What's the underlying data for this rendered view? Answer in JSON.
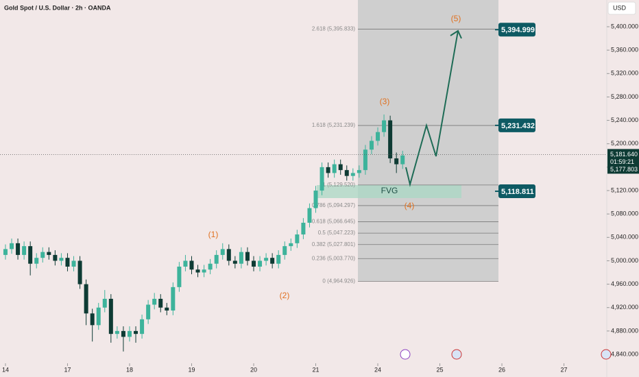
{
  "chart_data": {
    "type": "candlestick",
    "title": "Gold Spot / U.S. Dollar · 2h · OANDA",
    "currency": "USD",
    "xlim": [
      -0.088,
      9.69
    ],
    "ylim": [
      4824.8,
      5445.7
    ],
    "xticks": [
      {
        "value": 0,
        "label": "14"
      },
      {
        "value": 1,
        "label": "17"
      },
      {
        "value": 2,
        "label": "18"
      },
      {
        "value": 3,
        "label": "19"
      },
      {
        "value": 4,
        "label": "20"
      },
      {
        "value": 5,
        "label": "21"
      },
      {
        "value": 6,
        "label": "24"
      },
      {
        "value": 7,
        "label": "25"
      },
      {
        "value": 8,
        "label": "26"
      },
      {
        "value": 9,
        "label": "27"
      }
    ],
    "yticks": [
      {
        "value": 5400,
        "label": "5,400.000"
      },
      {
        "value": 5360,
        "label": "5,360.000"
      },
      {
        "value": 5320,
        "label": "5,320.000"
      },
      {
        "value": 5280,
        "label": "5,280.000"
      },
      {
        "value": 5240,
        "label": "5,240.000"
      },
      {
        "value": 5200,
        "label": "5,200.000"
      },
      {
        "value": 5160,
        "label": "5,160.000"
      },
      {
        "value": 5120,
        "label": "5,120.000"
      },
      {
        "value": 5080,
        "label": "5,080.000"
      },
      {
        "value": 5040,
        "label": "5,040.000"
      },
      {
        "value": 5000,
        "label": "5,000.000"
      },
      {
        "value": 4960,
        "label": "4,960.000"
      },
      {
        "value": 4920,
        "label": "4,920.000"
      },
      {
        "value": 4880,
        "label": "4,880.000"
      },
      {
        "value": 4840,
        "label": "4,840.000"
      }
    ],
    "up_color": "#3db39b",
    "down_color": "#0e3b34",
    "x": [
      0,
      0.1,
      0.2,
      0.3,
      0.4,
      0.5,
      0.6,
      0.7,
      0.8,
      0.9,
      1,
      1.1,
      1.2,
      1.3,
      1.4,
      1.5,
      1.6,
      1.7,
      1.8,
      1.9,
      2,
      2.1,
      2.2,
      2.3,
      2.4,
      2.5,
      2.6,
      2.7,
      2.8,
      2.9,
      3,
      3.1,
      3.2,
      3.3,
      3.4,
      3.5,
      3.6,
      3.7,
      3.8,
      3.9,
      4,
      4.1,
      4.2,
      4.3,
      4.4,
      4.5,
      4.6,
      4.7,
      4.8,
      4.9,
      5,
      5.1,
      5.2,
      5.3,
      5.4,
      5.5,
      5.6,
      5.7,
      5.8,
      5.9,
      6,
      6.1,
      6.2,
      6.3,
      6.4
    ],
    "open": [
      5010,
      5020,
      5030,
      5010,
      5025,
      4995,
      5005,
      5015,
      5010,
      5000,
      5005,
      4990,
      5000,
      4960,
      4910,
      4890,
      4920,
      4935,
      4875,
      4880,
      4870,
      4880,
      4875,
      4900,
      4925,
      4935,
      4920,
      4915,
      4955,
      4990,
      5000,
      4985,
      4980,
      4985,
      4995,
      5010,
      5020,
      5000,
      4995,
      5015,
      5000,
      4990,
      5000,
      5005,
      4995,
      5010,
      5025,
      5030,
      5045,
      5065,
      5090,
      5120,
      5160,
      5150,
      5165,
      5155,
      5145,
      5150,
      5155,
      5190,
      5205,
      5220,
      5240,
      5175,
      5165
    ],
    "high": [
      5028,
      5038,
      5038,
      5033,
      5033,
      5013,
      5023,
      5023,
      5018,
      5013,
      5013,
      5008,
      5008,
      4968,
      4918,
      4928,
      4950,
      4943,
      4888,
      4888,
      4888,
      4888,
      4908,
      4933,
      4945,
      4943,
      4928,
      4963,
      4998,
      5010,
      5008,
      4993,
      4993,
      5003,
      5018,
      5030,
      5028,
      5008,
      5023,
      5023,
      5008,
      5008,
      5013,
      5013,
      5018,
      5033,
      5038,
      5053,
      5073,
      5098,
      5128,
      5168,
      5168,
      5173,
      5173,
      5163,
      5158,
      5163,
      5198,
      5213,
      5228,
      5250,
      5248,
      5185,
      5188
    ],
    "low": [
      5002,
      5012,
      5002,
      5002,
      4975,
      4987,
      4997,
      5002,
      4992,
      4992,
      4982,
      4982,
      4952,
      4890,
      4862,
      4882,
      4912,
      4860,
      4867,
      4845,
      4862,
      4860,
      4867,
      4892,
      4917,
      4912,
      4907,
      4907,
      4947,
      4982,
      4977,
      4972,
      4972,
      4977,
      4987,
      5002,
      4992,
      4987,
      4987,
      4992,
      4982,
      4982,
      4992,
      4987,
      4987,
      5002,
      5017,
      5022,
      5037,
      5057,
      5082,
      5112,
      5142,
      5142,
      5147,
      5137,
      5137,
      5142,
      5147,
      5182,
      5197,
      5212,
      5167,
      5150,
      5157
    ],
    "close": [
      5020,
      5030,
      5010,
      5025,
      4995,
      5005,
      5015,
      5010,
      5000,
      5005,
      4990,
      5000,
      4960,
      4910,
      4890,
      4920,
      4935,
      4875,
      4880,
      4870,
      4880,
      4875,
      4900,
      4925,
      4935,
      4920,
      4915,
      4955,
      4990,
      5000,
      4985,
      4980,
      4985,
      4995,
      5010,
      5020,
      5000,
      4995,
      5015,
      5000,
      4990,
      5000,
      5005,
      4995,
      5010,
      5025,
      5030,
      5045,
      5065,
      5090,
      5120,
      5160,
      5150,
      5165,
      5155,
      5145,
      5150,
      5155,
      5190,
      5205,
      5220,
      5240,
      5175,
      5165,
      5180
    ],
    "fib_levels": [
      {
        "value": 5395.833,
        "label": "2.618 (5,395.833)"
      },
      {
        "value": 5231.239,
        "label": "1.618 (5,231.239)"
      },
      {
        "value": 5129.52,
        "label": "1 (5,129.520)"
      },
      {
        "value": 5094.297,
        "label": "0.786 (5,094.297)"
      },
      {
        "value": 5066.645,
        "label": "0.618 (5,066.645)"
      },
      {
        "value": 5047.223,
        "label": "0.5 (5,047.223)"
      },
      {
        "value": 5027.801,
        "label": "0.382 (5,027.801)"
      },
      {
        "value": 5003.77,
        "label": "0.236 (5,003.770)"
      },
      {
        "value": 4964.926,
        "label": "0 (4,964.926)"
      }
    ],
    "price_tags": [
      {
        "value": 5394.999,
        "label": "5,394.999"
      },
      {
        "value": 5231.432,
        "label": "5,231.432"
      },
      {
        "value": 5118.811,
        "label": "5,118.811"
      }
    ],
    "last_price": {
      "value": 5181.64,
      "label": "5,181.640"
    },
    "countdown": "01:59:21",
    "prev_close": {
      "value": 5177.803,
      "label": "5,177.803"
    },
    "wave_labels": [
      "(1)",
      "(2)",
      "(3)",
      "(4)",
      "(5)"
    ],
    "zone_label": "FVG"
  }
}
